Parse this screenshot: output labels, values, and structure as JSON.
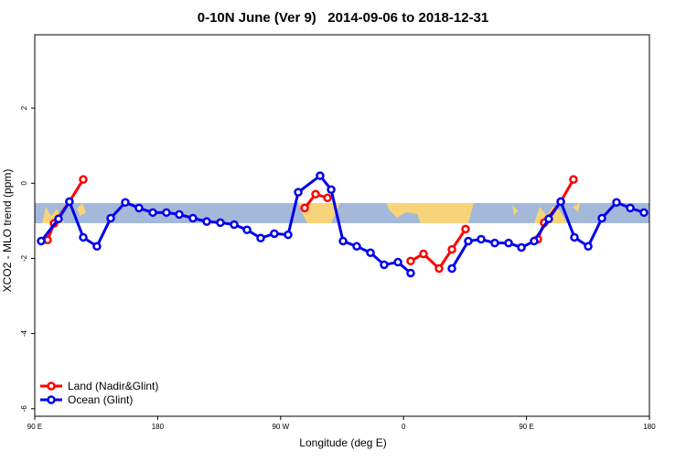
{
  "chart_data": {
    "type": "line",
    "title": "0-10N June (Ver 9)   2014-09-06 to 2018-12-31",
    "x_label": "Longitude (deg E)",
    "y_label": "XCO2 - MLO trend (ppm)",
    "xlim": [
      90,
      540
    ],
    "ylim": [
      -6.2,
      3.95
    ],
    "xticks": [
      {
        "value": 90,
        "label": "90 E"
      },
      {
        "value": 180,
        "label": "180"
      },
      {
        "value": 270,
        "label": "90 W"
      },
      {
        "value": 360,
        "label": "0"
      },
      {
        "value": 450,
        "label": "90 E"
      },
      {
        "value": 540,
        "label": "180"
      }
    ],
    "yticks": [
      -6,
      -4,
      -2,
      0,
      2
    ],
    "legend": "bottom-left",
    "series": [
      {
        "name": "Land (Nadir&Glint)",
        "color": "#ff0000",
        "x": [
          99.4,
          104.1,
          115.4,
          125.5,
          null,
          287.6,
          295.6,
          304.3,
          null,
          365.2,
          374.6,
          386,
          395.4,
          405.4,
          null,
          458.3,
          463,
          475.1,
          484.4
        ],
        "values": [
          -1.51,
          -1.07,
          -0.49,
          0.1,
          null,
          -0.66,
          -0.29,
          -0.39,
          null,
          -2.07,
          -1.88,
          -2.27,
          -1.76,
          -1.22,
          null,
          -1.49,
          -1.05,
          -0.49,
          0.1
        ]
      },
      {
        "name": "Ocean (Glint)",
        "color": "#0000ee",
        "x": [
          94.7,
          107.4,
          115.4,
          125.5,
          135.5,
          145.6,
          156.3,
          166.3,
          176.4,
          186.4,
          195.8,
          205.8,
          215.9,
          225.9,
          236,
          245.4,
          255.4,
          265.4,
          275.5,
          282.9,
          298.9,
          307,
          315.7,
          325.7,
          335.8,
          345.8,
          355.9,
          365.2,
          null,
          395.4,
          407.4,
          416.8,
          426.8,
          436.9,
          446.3,
          455.6,
          466.3,
          475.1,
          485.1,
          495.2,
          505.2,
          515.9,
          526,
          536
        ],
        "values": [
          -1.54,
          -0.95,
          -0.49,
          -1.44,
          -1.68,
          -0.93,
          -0.51,
          -0.66,
          -0.78,
          -0.78,
          -0.83,
          -0.93,
          -1.02,
          -1.05,
          -1.1,
          -1.24,
          -1.46,
          -1.34,
          -1.37,
          -0.24,
          0.2,
          -0.17,
          -1.54,
          -1.68,
          -1.85,
          -2.17,
          -2.1,
          -2.39,
          null,
          -2.27,
          -1.54,
          -1.49,
          -1.59,
          -1.59,
          -1.71,
          -1.54,
          -0.95,
          -0.49,
          -1.44,
          -1.68,
          -0.93,
          -0.51,
          -0.66,
          -0.78
        ]
      }
    ]
  }
}
